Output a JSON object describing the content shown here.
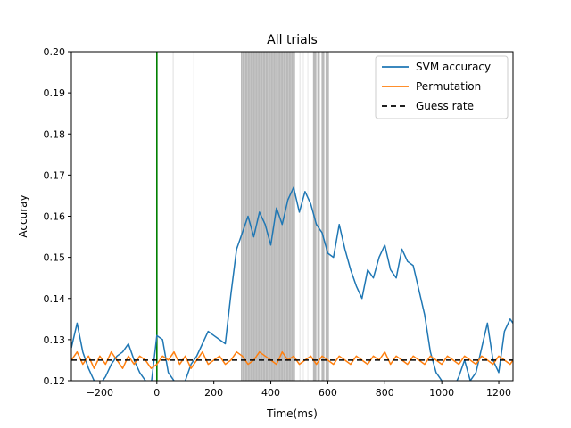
{
  "chart_data": {
    "type": "line",
    "title": "All trials",
    "xlabel": "Time(ms)",
    "ylabel": "Accuray",
    "xlim": [
      -300,
      1250
    ],
    "ylim": [
      0.12,
      0.2
    ],
    "x_ticks": [
      -200,
      0,
      200,
      400,
      600,
      800,
      1000,
      1200
    ],
    "y_ticks": [
      0.12,
      0.13,
      0.14,
      0.15,
      0.16,
      0.17,
      0.18,
      0.19,
      0.2
    ],
    "x_tick_labels": [
      "−200",
      "0",
      "200",
      "400",
      "600",
      "800",
      "1000",
      "1200"
    ],
    "y_tick_labels": [
      "0.12",
      "0.13",
      "0.14",
      "0.15",
      "0.16",
      "0.17",
      "0.18",
      "0.19",
      "0.20"
    ],
    "grid": false,
    "legend_position": "top-right",
    "stimulus_onset": 0,
    "guess_rate": 0.125,
    "significant_dense_ranges": [
      [
        295,
        485
      ],
      [
        548,
        560
      ],
      [
        563,
        572
      ],
      [
        578,
        588
      ],
      [
        592,
        604
      ]
    ],
    "significant_faint_ranges": [
      [
        55,
        60
      ],
      [
        128,
        132
      ],
      [
        500,
        505
      ],
      [
        512,
        516
      ],
      [
        528,
        532
      ]
    ],
    "series": [
      {
        "name": "SVM accuracy",
        "color": "#1f77b4",
        "x": [
          -300,
          -280,
          -260,
          -240,
          -220,
          -200,
          -180,
          -160,
          -140,
          -120,
          -100,
          -80,
          -60,
          -40,
          -20,
          0,
          20,
          40,
          60,
          80,
          100,
          120,
          140,
          160,
          180,
          200,
          220,
          240,
          260,
          280,
          300,
          320,
          340,
          360,
          380,
          400,
          420,
          440,
          460,
          480,
          500,
          520,
          540,
          560,
          580,
          600,
          620,
          640,
          660,
          680,
          700,
          720,
          740,
          760,
          780,
          800,
          820,
          840,
          860,
          880,
          900,
          920,
          940,
          960,
          980,
          1000,
          1020,
          1040,
          1060,
          1080,
          1100,
          1120,
          1140,
          1160,
          1180,
          1200,
          1220,
          1240,
          1250
        ],
        "values": [
          0.128,
          0.134,
          0.127,
          0.123,
          0.12,
          0.119,
          0.121,
          0.124,
          0.126,
          0.127,
          0.129,
          0.125,
          0.122,
          0.12,
          0.119,
          0.131,
          0.13,
          0.122,
          0.12,
          0.118,
          0.12,
          0.124,
          0.126,
          0.129,
          0.132,
          0.131,
          0.13,
          0.129,
          0.141,
          0.152,
          0.156,
          0.16,
          0.155,
          0.161,
          0.158,
          0.153,
          0.162,
          0.158,
          0.164,
          0.167,
          0.161,
          0.166,
          0.163,
          0.158,
          0.156,
          0.151,
          0.15,
          0.158,
          0.152,
          0.147,
          0.143,
          0.14,
          0.147,
          0.145,
          0.15,
          0.153,
          0.147,
          0.145,
          0.152,
          0.149,
          0.148,
          0.142,
          0.136,
          0.127,
          0.122,
          0.12,
          0.118,
          0.118,
          0.121,
          0.125,
          0.12,
          0.122,
          0.128,
          0.134,
          0.125,
          0.122,
          0.132,
          0.135,
          0.134
        ]
      },
      {
        "name": "Permutation",
        "color": "#ff7f0e",
        "x": [
          -300,
          -280,
          -260,
          -240,
          -220,
          -200,
          -180,
          -160,
          -140,
          -120,
          -100,
          -80,
          -60,
          -40,
          -20,
          0,
          20,
          40,
          60,
          80,
          100,
          120,
          140,
          160,
          180,
          200,
          220,
          240,
          260,
          280,
          300,
          320,
          340,
          360,
          380,
          400,
          420,
          440,
          460,
          480,
          500,
          520,
          540,
          560,
          580,
          600,
          620,
          640,
          660,
          680,
          700,
          720,
          740,
          760,
          780,
          800,
          820,
          840,
          860,
          880,
          900,
          920,
          940,
          960,
          980,
          1000,
          1020,
          1040,
          1060,
          1080,
          1100,
          1120,
          1140,
          1160,
          1180,
          1200,
          1220,
          1240,
          1250
        ],
        "values": [
          0.125,
          0.127,
          0.124,
          0.126,
          0.123,
          0.126,
          0.124,
          0.127,
          0.125,
          0.123,
          0.126,
          0.124,
          0.126,
          0.125,
          0.123,
          0.124,
          0.126,
          0.125,
          0.127,
          0.124,
          0.126,
          0.123,
          0.125,
          0.127,
          0.124,
          0.125,
          0.126,
          0.124,
          0.125,
          0.127,
          0.126,
          0.124,
          0.125,
          0.127,
          0.126,
          0.125,
          0.124,
          0.127,
          0.125,
          0.126,
          0.124,
          0.125,
          0.126,
          0.124,
          0.126,
          0.125,
          0.124,
          0.126,
          0.125,
          0.124,
          0.126,
          0.125,
          0.124,
          0.126,
          0.125,
          0.127,
          0.124,
          0.126,
          0.125,
          0.124,
          0.126,
          0.125,
          0.124,
          0.126,
          0.125,
          0.124,
          0.126,
          0.125,
          0.124,
          0.126,
          0.125,
          0.124,
          0.126,
          0.125,
          0.124,
          0.126,
          0.125,
          0.124,
          0.125
        ]
      },
      {
        "name": "Guess rate",
        "color": "#000000",
        "style": "dashed",
        "x": [
          -300,
          1250
        ],
        "values": [
          0.125,
          0.125
        ]
      }
    ]
  }
}
